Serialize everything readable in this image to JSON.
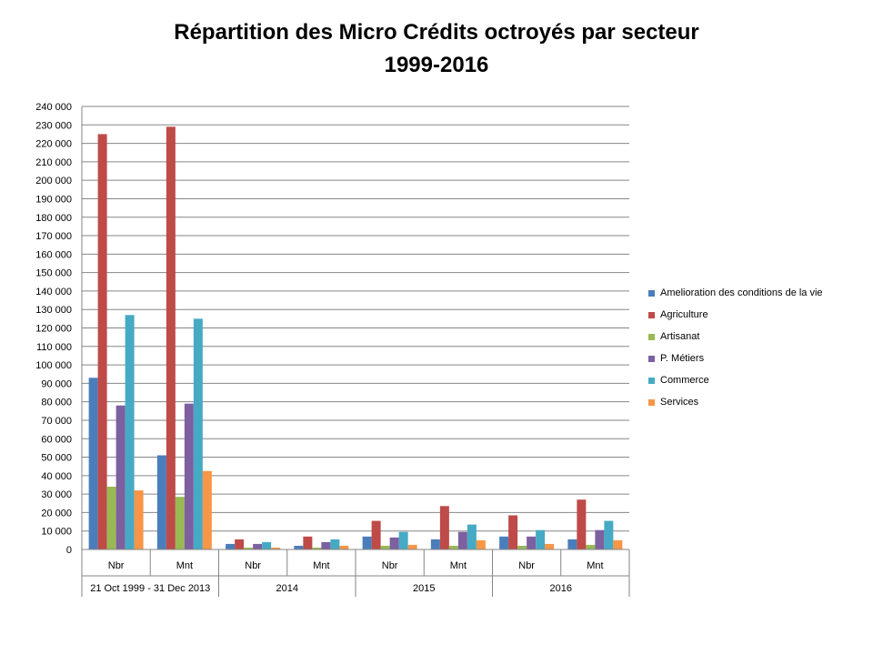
{
  "chart_data": {
    "type": "bar",
    "title_line1": "Répartition des Micro Crédits octroyés par secteur",
    "title_line2": "1999-2016",
    "ylim": [
      0,
      240000
    ],
    "y_ticks": [
      "0",
      "10 000",
      "20 000",
      "30 000",
      "40 000",
      "50 000",
      "60 000",
      "70 000",
      "80 000",
      "90 000",
      "100 000",
      "110 000",
      "120 000",
      "130 000",
      "140 000",
      "150 000",
      "160 000",
      "170 000",
      "180 000",
      "190 000",
      "200 000",
      "210 000",
      "220 000",
      "230 000",
      "240 000"
    ],
    "grid": true,
    "legend_position": "right",
    "categories": [
      "Nbr",
      "Mnt",
      "Nbr",
      "Mnt",
      "Nbr",
      "Mnt",
      "Nbr",
      "Mnt"
    ],
    "groups": [
      "21 Oct 1999 - 31 Dec 2013",
      "2014",
      "2015",
      "2016"
    ],
    "series": [
      {
        "name": "Amelioration des  conditions de la vie",
        "color": "#4a7ebb",
        "values": [
          93000,
          51000,
          3000,
          2000,
          7000,
          5500,
          7000,
          5500
        ]
      },
      {
        "name": "Agriculture",
        "color": "#be4b48",
        "values": [
          225000,
          229000,
          5500,
          7000,
          15500,
          23500,
          18500,
          27000
        ]
      },
      {
        "name": "Artisanat",
        "color": "#98b954",
        "values": [
          34000,
          28500,
          1000,
          1000,
          2000,
          2000,
          2000,
          2500
        ]
      },
      {
        "name": "P. Métiers",
        "color": "#7d60a0",
        "values": [
          78000,
          79000,
          3000,
          4000,
          6500,
          9500,
          7000,
          10500
        ]
      },
      {
        "name": "Commerce",
        "color": "#46aac5",
        "values": [
          127000,
          125000,
          4000,
          5500,
          9500,
          13500,
          10500,
          15500
        ]
      },
      {
        "name": "Services",
        "color": "#f79646",
        "values": [
          32000,
          42500,
          1000,
          2000,
          2500,
          5000,
          3000,
          5000
        ]
      }
    ]
  }
}
